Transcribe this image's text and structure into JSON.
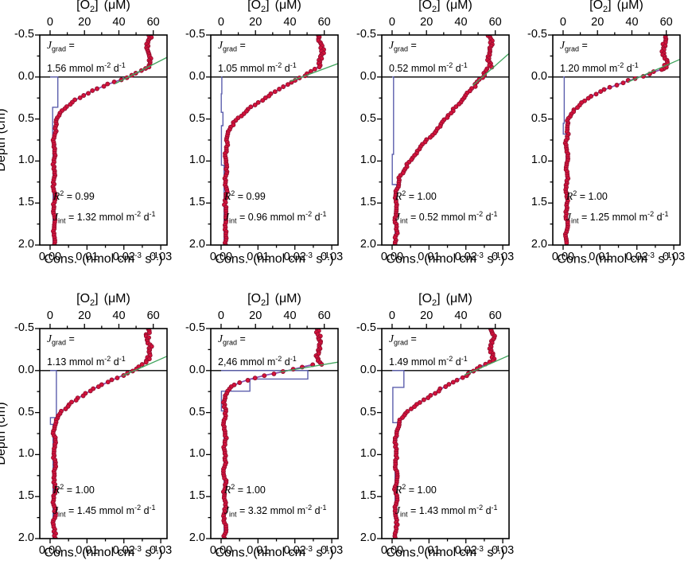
{
  "figure": {
    "description": "Seven-panel oxygen microprofile figure: O2 concentration vs sediment depth with consumption-rate step profiles, gradient fit lines and flux annotations",
    "colors": {
      "background": "#ffffff",
      "frame": "#000000",
      "o2_points_fill": "#d5123c",
      "o2_points_edge": "#8e0f2e",
      "consumption_steps": "#5c5fad",
      "model_fit": "#8a4bb0",
      "gradient_line": "#3fa45c"
    },
    "axes": {
      "o2_top": {
        "title_pre": "[O",
        "title_sub": "2",
        "title_post": "]",
        "title_unit": "(μM)",
        "tick_labels": [
          "0",
          "20",
          "40",
          "60"
        ],
        "tick_values": [
          0,
          20,
          40,
          60
        ],
        "minor_tick_values": [
          10,
          30,
          50
        ],
        "range": [
          -6,
          68
        ]
      },
      "cons_bottom": {
        "title_pre": "Cons.",
        "title_unit_pre": "(nmol cm",
        "title_sup1": "-3",
        "title_mid": " s",
        "title_sup2": "-1",
        "title_close": ")",
        "tick_labels": [
          "0.00",
          "0.01",
          "0.02",
          "0.03"
        ],
        "tick_values": [
          0,
          0.01,
          0.02,
          0.03
        ],
        "minor_tick_values": [
          0.005,
          0.015,
          0.025
        ],
        "range": [
          -0.0028,
          0.0317
        ]
      },
      "depth_left": {
        "title": "Depth (cm)",
        "tick_labels": [
          "-0.5",
          "0.0",
          "0.5",
          "1.0",
          "1.5",
          "2.0"
        ],
        "tick_values": [
          -0.5,
          0.0,
          0.5,
          1.0,
          1.5,
          2.0
        ],
        "minor_tick_values": [
          -0.25,
          0.25,
          0.75,
          1.25,
          1.75
        ],
        "range": [
          -0.5,
          2.0
        ]
      }
    },
    "symbols": {
      "j": "J",
      "grad": "grad",
      "int": "int",
      "r": "R",
      "r_sup": "2",
      "eq": "="
    },
    "unit": {
      "pre": "mmol m",
      "sup1": "-2",
      "mid": "d",
      "sup2": "-1"
    }
  },
  "panels": [
    {
      "jgrad_value": "1.56",
      "r2_value": "0.99",
      "jint_value": "1.32"
    },
    {
      "jgrad_value": "1.05",
      "r2_value": "0.99",
      "jint_value": "0.96"
    },
    {
      "jgrad_value": "0.52",
      "r2_value": "1.00",
      "jint_value": "0.52"
    },
    {
      "jgrad_value": "1.20",
      "r2_value": "1.00",
      "jint_value": "1.25"
    },
    {
      "jgrad_value": "1.13",
      "r2_value": "1.00",
      "jint_value": "1.45"
    },
    {
      "jgrad_value": "2,46",
      "r2_value": "1.00",
      "jint_value": "3.32"
    },
    {
      "jgrad_value": "1.49",
      "r2_value": "1.00",
      "jint_value": "1.43"
    }
  ],
  "chart_data": [
    {
      "type": "scatter",
      "panel": "top-row-1",
      "x_top_axis": {
        "label": "[O2] (uM)",
        "range": [
          -6,
          68
        ],
        "ticks": [
          0,
          20,
          40,
          60
        ]
      },
      "x_bottom_axis": {
        "label": "Cons. (nmol cm-3 s-1)",
        "range": [
          -0.0028,
          0.0317
        ],
        "ticks": [
          0,
          0.01,
          0.02,
          0.03
        ]
      },
      "y_axis": {
        "label": "Depth (cm)",
        "range": [
          -0.5,
          2.0
        ],
        "ticks": [
          -0.5,
          0,
          0.5,
          1,
          1.5,
          2
        ]
      },
      "bottom_water_o2_uM": 57.5,
      "dbl_top_depth_cm": -0.1,
      "o2_anchors_depth_uM": [
        [
          -0.1,
          56
        ],
        [
          0,
          45.5
        ],
        [
          0.1,
          32
        ],
        [
          0.2,
          21
        ],
        [
          0.3,
          12.5
        ],
        [
          0.4,
          6.5
        ],
        [
          0.5,
          4
        ],
        [
          0.6,
          2.9
        ],
        [
          0.75,
          2.4
        ],
        [
          2.0,
          2.4
        ]
      ],
      "o2_penetration_depth_cm": 0.75,
      "consumption_steps_value_toDepth": [
        [
          0.0021,
          0.36
        ],
        [
          0.0007,
          0.72
        ],
        [
          0.0008,
          2.0
        ]
      ],
      "gradient_line_o2_depth": [
        [
          38,
          0.078
        ],
        [
          68,
          -0.234
        ]
      ],
      "jgrad_mmol_m2_d": 1.56,
      "r2": 0.99,
      "jint_mmol_m2_d": 1.32
    },
    {
      "type": "scatter",
      "panel": "top-row-2",
      "x_top_axis": {
        "label": "[O2] (uM)",
        "range": [
          -6,
          68
        ],
        "ticks": [
          0,
          20,
          40,
          60
        ]
      },
      "x_bottom_axis": {
        "label": "Cons. (nmol cm-3 s-1)",
        "range": [
          -0.0028,
          0.0317
        ],
        "ticks": [
          0,
          0.01,
          0.02,
          0.03
        ]
      },
      "y_axis": {
        "label": "Depth (cm)",
        "range": [
          -0.5,
          2.0
        ],
        "ticks": [
          -0.5,
          0,
          0.5,
          1,
          1.5,
          2
        ]
      },
      "bottom_water_o2_uM": 58,
      "dbl_top_depth_cm": -0.12,
      "o2_anchors_depth_uM": [
        [
          -0.12,
          56.5
        ],
        [
          0,
          47
        ],
        [
          0.1,
          38
        ],
        [
          0.2,
          29
        ],
        [
          0.3,
          22
        ],
        [
          0.4,
          15
        ],
        [
          0.5,
          9.5
        ],
        [
          0.6,
          5.5
        ],
        [
          0.7,
          3.8
        ],
        [
          0.85,
          2.8
        ],
        [
          2.0,
          2.6
        ]
      ],
      "o2_penetration_depth_cm": 0.9,
      "consumption_steps_value_toDepth": [
        [
          0.0002,
          0.2
        ],
        [
          5e-05,
          0.42
        ],
        [
          0.0005,
          0.58
        ],
        [
          0.0001,
          1.05
        ],
        [
          0.0008,
          2.0
        ]
      ],
      "gradient_line_o2_depth": [
        [
          40,
          0.053
        ],
        [
          68,
          -0.16
        ]
      ],
      "jgrad_mmol_m2_d": 1.05,
      "r2": 0.99,
      "jint_mmol_m2_d": 0.96
    },
    {
      "type": "scatter",
      "panel": "top-row-3",
      "x_top_axis": {
        "label": "[O2] (uM)",
        "range": [
          -6,
          68
        ],
        "ticks": [
          0,
          20,
          40,
          60
        ]
      },
      "x_bottom_axis": {
        "label": "Cons. (nmol cm-3 s-1)",
        "range": [
          -0.0028,
          0.0317
        ],
        "ticks": [
          0,
          0.01,
          0.02,
          0.03
        ]
      },
      "y_axis": {
        "label": "Depth (cm)",
        "range": [
          -0.5,
          2.0
        ],
        "ticks": [
          -0.5,
          0,
          0.5,
          1,
          1.5,
          2
        ]
      },
      "bottom_water_o2_uM": 57,
      "dbl_top_depth_cm": -0.1,
      "o2_anchors_depth_uM": [
        [
          -0.1,
          55.5
        ],
        [
          0,
          52.5
        ],
        [
          0.15,
          46
        ],
        [
          0.3,
          39.5
        ],
        [
          0.45,
          33
        ],
        [
          0.6,
          27
        ],
        [
          0.75,
          20.5
        ],
        [
          0.9,
          14
        ],
        [
          1.05,
          8.5
        ],
        [
          1.2,
          4.5
        ],
        [
          1.35,
          2.6
        ],
        [
          2.0,
          2.2
        ]
      ],
      "o2_penetration_depth_cm": 1.35,
      "consumption_steps_value_toDepth": [
        [
          0.0004,
          0.92
        ],
        [
          5e-05,
          1.28
        ],
        [
          0.0012,
          1.5
        ],
        [
          0.0008,
          2.0
        ]
      ],
      "gradient_line_o2_depth": [
        [
          47,
          0.099
        ],
        [
          68,
          -0.28
        ]
      ],
      "jgrad_mmol_m2_d": 0.52,
      "r2": 1.0,
      "jint_mmol_m2_d": 0.52
    },
    {
      "type": "scatter",
      "panel": "top-row-4",
      "x_top_axis": {
        "label": "[O2] (uM)",
        "range": [
          -6,
          68
        ],
        "ticks": [
          0,
          20,
          40,
          60
        ]
      },
      "x_bottom_axis": {
        "label": "Cons. (nmol cm-3 s-1)",
        "range": [
          -0.0028,
          0.0317
        ],
        "ticks": [
          0,
          0.01,
          0.02,
          0.03
        ]
      },
      "y_axis": {
        "label": "Depth (cm)",
        "range": [
          -0.5,
          2.0
        ],
        "ticks": [
          -0.5,
          0,
          0.5,
          1,
          1.5,
          2
        ]
      },
      "bottom_water_o2_uM": 59,
      "dbl_top_depth_cm": -0.09,
      "o2_anchors_depth_uM": [
        [
          -0.09,
          57
        ],
        [
          0,
          44.5
        ],
        [
          0.08,
          33
        ],
        [
          0.16,
          23
        ],
        [
          0.24,
          15.5
        ],
        [
          0.32,
          10
        ],
        [
          0.42,
          5.5
        ],
        [
          0.52,
          3.2
        ],
        [
          0.62,
          2.2
        ],
        [
          2.0,
          2.0
        ]
      ],
      "o2_penetration_depth_cm": 0.62,
      "consumption_steps_value_toDepth": [
        [
          0.0003,
          0.55
        ],
        [
          5e-05,
          0.68
        ],
        [
          0.0008,
          2.0
        ]
      ],
      "gradient_line_o2_depth": [
        [
          38,
          0.058
        ],
        [
          68,
          -0.21
        ]
      ],
      "jgrad_mmol_m2_d": 1.2,
      "r2": 1.0,
      "jint_mmol_m2_d": 1.25
    },
    {
      "type": "scatter",
      "panel": "bottom-row-1",
      "x_top_axis": {
        "label": "[O2] (uM)",
        "range": [
          -6,
          68
        ],
        "ticks": [
          0,
          20,
          40,
          60
        ]
      },
      "x_bottom_axis": {
        "label": "Cons. (nmol cm-3 s-1)",
        "range": [
          -0.0028,
          0.0317
        ],
        "ticks": [
          0,
          0.01,
          0.02,
          0.03
        ]
      },
      "y_axis": {
        "label": "Depth (cm)",
        "range": [
          -0.5,
          2.0
        ],
        "ticks": [
          -0.5,
          0,
          0.5,
          1,
          1.5,
          2
        ]
      },
      "bottom_water_o2_uM": 57.5,
      "dbl_top_depth_cm": -0.1,
      "o2_anchors_depth_uM": [
        [
          -0.1,
          55.5
        ],
        [
          0,
          49
        ],
        [
          0.1,
          37.5
        ],
        [
          0.2,
          27
        ],
        [
          0.3,
          18.5
        ],
        [
          0.4,
          11.5
        ],
        [
          0.5,
          6
        ],
        [
          0.58,
          3.5
        ],
        [
          0.68,
          2.6
        ],
        [
          2.0,
          2.4
        ]
      ],
      "o2_penetration_depth_cm": 0.68,
      "consumption_steps_value_toDepth": [
        [
          0.0017,
          0.56
        ],
        [
          0.0001,
          0.64
        ],
        [
          0.0008,
          2.0
        ]
      ],
      "gradient_line_o2_depth": [
        [
          42,
          0.063
        ],
        [
          68,
          -0.17
        ]
      ],
      "jgrad_mmol_m2_d": 1.13,
      "r2": 1.0,
      "jint_mmol_m2_d": 1.45
    },
    {
      "type": "scatter",
      "panel": "bottom-row-2",
      "x_top_axis": {
        "label": "[O2] (uM)",
        "range": [
          -6,
          68
        ],
        "ticks": [
          0,
          20,
          40,
          60
        ]
      },
      "x_bottom_axis": {
        "label": "Cons. (nmol cm-3 s-1)",
        "range": [
          -0.0028,
          0.0317
        ],
        "ticks": [
          0,
          0.01,
          0.02,
          0.03
        ]
      },
      "y_axis": {
        "label": "Depth (cm)",
        "range": [
          -0.5,
          2.0
        ],
        "ticks": [
          -0.5,
          0,
          0.5,
          1,
          1.5,
          2
        ]
      },
      "bottom_water_o2_uM": 57,
      "dbl_top_depth_cm": -0.07,
      "o2_anchors_depth_uM": [
        [
          -0.07,
          53
        ],
        [
          0,
          39
        ],
        [
          0.05,
          27
        ],
        [
          0.1,
          17
        ],
        [
          0.15,
          10
        ],
        [
          0.2,
          5.5
        ],
        [
          0.25,
          3
        ],
        [
          0.32,
          2.2
        ],
        [
          2.0,
          2.1
        ]
      ],
      "o2_penetration_depth_cm": 0.32,
      "consumption_steps_value_toDepth": [
        [
          0.0235,
          0.1
        ],
        [
          0.0078,
          0.245
        ],
        [
          0.0001,
          0.48
        ],
        [
          0.0008,
          2.0
        ]
      ],
      "gradient_line_o2_depth": [
        [
          34,
          0.017
        ],
        [
          68,
          -0.1
        ]
      ],
      "jgrad_mmol_m2_d": 2.46,
      "r2": 1.0,
      "jint_mmol_m2_d": 3.32
    },
    {
      "type": "scatter",
      "panel": "bottom-row-3",
      "x_top_axis": {
        "label": "[O2] (uM)",
        "range": [
          -6,
          68
        ],
        "ticks": [
          0,
          20,
          40,
          60
        ]
      },
      "x_bottom_axis": {
        "label": "Cons. (nmol cm-3 s-1)",
        "range": [
          -0.0028,
          0.0317
        ],
        "ticks": [
          0,
          0.01,
          0.02,
          0.03
        ]
      },
      "y_axis": {
        "label": "Depth (cm)",
        "range": [
          -0.5,
          2.0
        ],
        "ticks": [
          -0.5,
          0,
          0.5,
          1,
          1.5,
          2
        ]
      },
      "bottom_water_o2_uM": 58,
      "dbl_top_depth_cm": -0.1,
      "o2_anchors_depth_uM": [
        [
          -0.1,
          56
        ],
        [
          0,
          48
        ],
        [
          0.1,
          39
        ],
        [
          0.2,
          30
        ],
        [
          0.3,
          22
        ],
        [
          0.4,
          14.5
        ],
        [
          0.5,
          8.5
        ],
        [
          0.6,
          4.5
        ],
        [
          0.7,
          2.8
        ],
        [
          0.8,
          2.3
        ],
        [
          2.0,
          2.2
        ]
      ],
      "o2_penetration_depth_cm": 0.8,
      "consumption_steps_value_toDepth": [
        [
          0.0032,
          0.2
        ],
        [
          0.0002,
          0.62
        ],
        [
          0.0015,
          0.8
        ],
        [
          0.0008,
          2.0
        ]
      ],
      "gradient_line_o2_depth": [
        [
          42,
          0.054
        ],
        [
          68,
          -0.18
        ]
      ],
      "jgrad_mmol_m2_d": 1.49,
      "r2": 1.0,
      "jint_mmol_m2_d": 1.43
    }
  ]
}
